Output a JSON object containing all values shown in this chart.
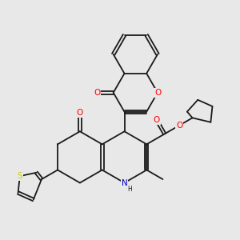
{
  "background_color": "#e8e8e8",
  "bond_color": "#1a1a1a",
  "atom_colors": {
    "O": "#ff0000",
    "N": "#0000cd",
    "S": "#cccc00",
    "C": "#1a1a1a",
    "H": "#1a1a1a"
  },
  "lw": 1.3,
  "dbo": 0.055
}
